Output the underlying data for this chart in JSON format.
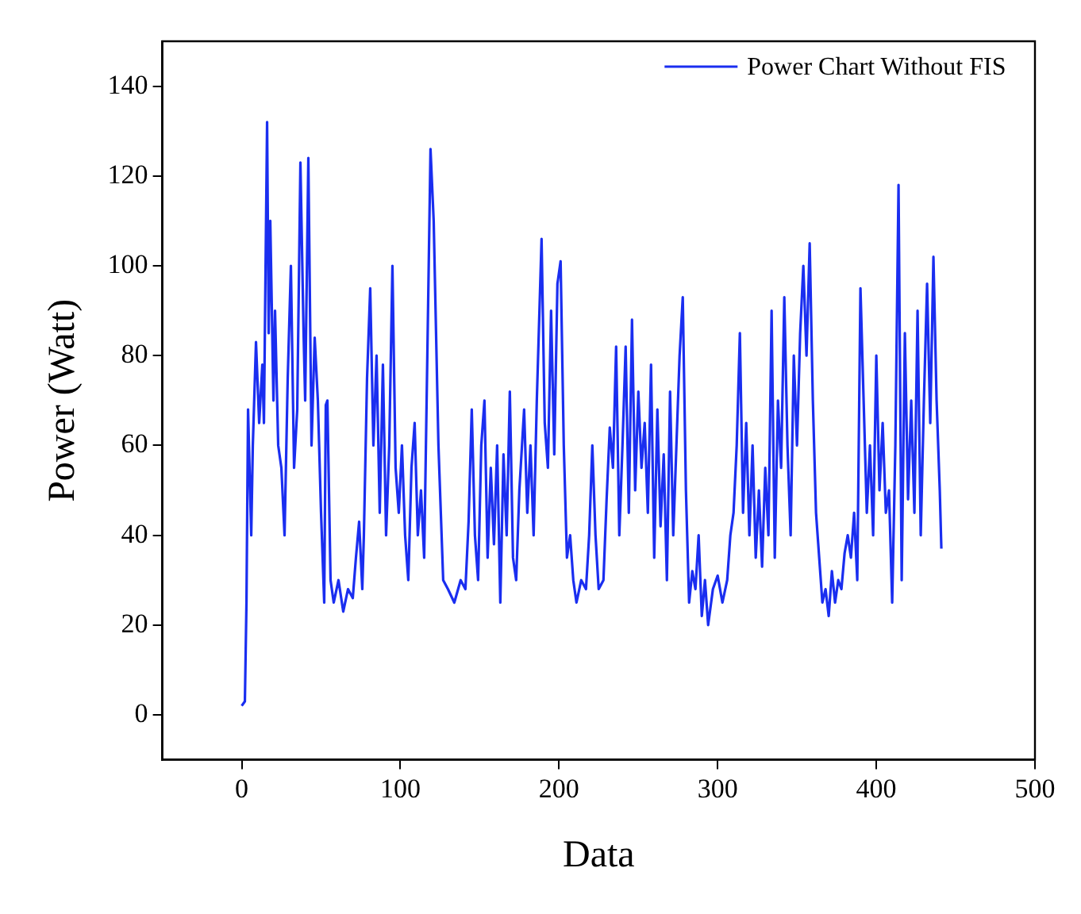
{
  "chart_data": {
    "type": "line",
    "xlabel": "Data",
    "ylabel": "Power (Watt)",
    "xlim": [
      -50,
      500
    ],
    "xticks": [
      0,
      100,
      200,
      300,
      400,
      500
    ],
    "ylim": [
      -10,
      150
    ],
    "yticks": [
      0,
      20,
      40,
      60,
      80,
      100,
      120,
      140
    ],
    "grid": false,
    "legend": "top right",
    "marker": "none",
    "line_style": "solid",
    "x": [
      0,
      2,
      3,
      4,
      6,
      7,
      9,
      11,
      13,
      14,
      16,
      17,
      18,
      20,
      21,
      23,
      25,
      27,
      29,
      31,
      33,
      35,
      37,
      39,
      40,
      42,
      44,
      46,
      48,
      50,
      52,
      53,
      54,
      56,
      58,
      61,
      64,
      67,
      70,
      72,
      74,
      76,
      77,
      79,
      81,
      83,
      85,
      87,
      89,
      91,
      93,
      95,
      97,
      99,
      101,
      103,
      105,
      107,
      109,
      111,
      113,
      115,
      117,
      119,
      121,
      124,
      127,
      130,
      134,
      138,
      141,
      143,
      145,
      147,
      149,
      151,
      153,
      155,
      157,
      159,
      161,
      163,
      165,
      167,
      169,
      171,
      173,
      175,
      178,
      180,
      182,
      184,
      186,
      189,
      191,
      193,
      195,
      197,
      199,
      201,
      203,
      205,
      207,
      209,
      211,
      214,
      217,
      219,
      221,
      223,
      225,
      228,
      230,
      232,
      234,
      236,
      238,
      240,
      242,
      244,
      246,
      248,
      250,
      252,
      254,
      256,
      258,
      260,
      262,
      264,
      266,
      268,
      270,
      272,
      274,
      276,
      278,
      280,
      282,
      284,
      286,
      288,
      290,
      292,
      294,
      297,
      300,
      303,
      306,
      308,
      310,
      312,
      314,
      316,
      318,
      320,
      322,
      324,
      326,
      328,
      330,
      332,
      334,
      336,
      338,
      340,
      342,
      344,
      346,
      348,
      350,
      352,
      354,
      356,
      358,
      360,
      362,
      364,
      366,
      368,
      370,
      372,
      374,
      376,
      378,
      380,
      382,
      384,
      386,
      388,
      390,
      392,
      394,
      396,
      398,
      400,
      402,
      404,
      406,
      408,
      410,
      412,
      414,
      416,
      418,
      420,
      422,
      424,
      426,
      428,
      430,
      432,
      434,
      436,
      438,
      440,
      441
    ],
    "series": [
      {
        "name": "Power Chart Without FIS",
        "color": "#1a2ef0",
        "values": [
          2,
          3,
          25,
          68,
          40,
          60,
          83,
          65,
          78,
          65,
          132,
          85,
          110,
          70,
          90,
          60,
          55,
          40,
          75,
          100,
          55,
          68,
          123,
          85,
          70,
          124,
          60,
          84,
          70,
          45,
          25,
          69,
          70,
          30,
          25,
          30,
          23,
          28,
          26,
          35,
          43,
          28,
          40,
          75,
          95,
          60,
          80,
          45,
          78,
          40,
          60,
          100,
          55,
          45,
          60,
          40,
          30,
          55,
          65,
          40,
          50,
          35,
          80,
          126,
          110,
          60,
          30,
          28,
          25,
          30,
          28,
          43,
          68,
          40,
          30,
          60,
          70,
          35,
          55,
          38,
          60,
          25,
          58,
          40,
          72,
          35,
          30,
          50,
          68,
          45,
          60,
          40,
          70,
          106,
          65,
          55,
          90,
          58,
          96,
          101,
          60,
          35,
          40,
          30,
          25,
          30,
          28,
          40,
          60,
          40,
          28,
          30,
          48,
          64,
          55,
          82,
          40,
          60,
          82,
          45,
          88,
          50,
          72,
          55,
          65,
          45,
          78,
          35,
          68,
          42,
          58,
          30,
          72,
          40,
          60,
          80,
          93,
          50,
          25,
          32,
          28,
          40,
          22,
          30,
          20,
          28,
          31,
          25,
          30,
          40,
          45,
          60,
          85,
          45,
          65,
          40,
          60,
          35,
          50,
          33,
          55,
          40,
          90,
          35,
          70,
          55,
          93,
          60,
          40,
          80,
          60,
          85,
          100,
          80,
          105,
          70,
          45,
          35,
          25,
          28,
          22,
          32,
          25,
          30,
          28,
          36,
          40,
          35,
          45,
          30,
          95,
          70,
          45,
          60,
          40,
          80,
          50,
          65,
          45,
          50,
          25,
          60,
          118,
          30,
          85,
          48,
          70,
          45,
          90,
          40,
          70,
          96,
          65,
          102,
          70,
          50,
          37
        ]
      }
    ]
  }
}
